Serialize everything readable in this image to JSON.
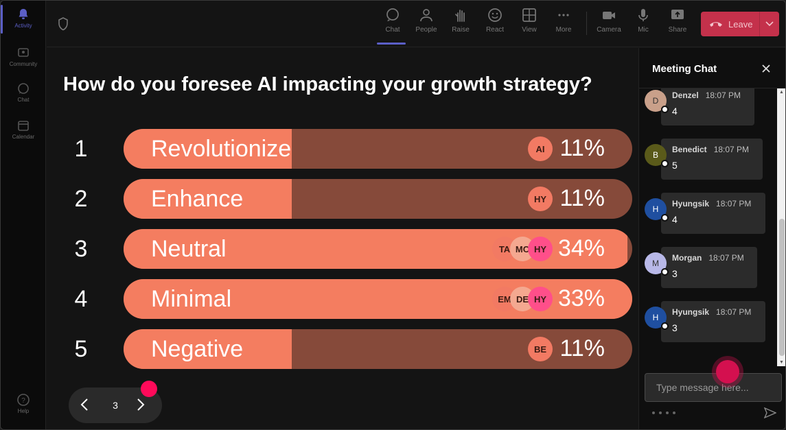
{
  "rail": {
    "items": [
      {
        "label": "Activity",
        "icon": "bell-icon"
      },
      {
        "label": "Community",
        "icon": "community-icon"
      },
      {
        "label": "Chat",
        "icon": "chat-icon"
      },
      {
        "label": "Calendar",
        "icon": "calendar-icon"
      },
      {
        "label": "Help",
        "icon": "help-icon"
      }
    ]
  },
  "toolbar": {
    "items": [
      {
        "label": "Chat",
        "icon": "chat-icon"
      },
      {
        "label": "People",
        "icon": "people-icon"
      },
      {
        "label": "Raise",
        "icon": "raise-hand-icon"
      },
      {
        "label": "React",
        "icon": "react-icon"
      },
      {
        "label": "View",
        "icon": "view-icon"
      },
      {
        "label": "More",
        "icon": "more-icon"
      },
      {
        "label": "Camera",
        "icon": "camera-icon"
      },
      {
        "label": "Mic",
        "icon": "mic-icon"
      },
      {
        "label": "Share",
        "icon": "share-icon"
      }
    ],
    "leave_label": "Leave"
  },
  "poll": {
    "question": "How do you foresee AI impacting your growth strategy?",
    "options": [
      {
        "num": "1",
        "label": "Revolutionize",
        "percent": "11%",
        "fill": 0.33,
        "avatars": [
          "AI"
        ]
      },
      {
        "num": "2",
        "label": "Enhance",
        "percent": "11%",
        "fill": 0.33,
        "avatars": [
          "HY"
        ]
      },
      {
        "num": "3",
        "label": "Neutral",
        "percent": "34%",
        "fill": 0.99,
        "avatars": [
          "TA",
          "MC",
          "HY"
        ]
      },
      {
        "num": "4",
        "label": "Minimal",
        "percent": "33%",
        "fill": 1.0,
        "avatars": [
          "EM",
          "DE",
          "HY"
        ]
      },
      {
        "num": "5",
        "label": "Negative",
        "percent": "11%",
        "fill": 0.33,
        "avatars": [
          "BE"
        ]
      }
    ],
    "pager": {
      "page": "3"
    }
  },
  "chat": {
    "title": "Meeting Chat",
    "messages": [
      {
        "initial": "D",
        "name": "Denzel",
        "time": "18:07 PM",
        "text": "4",
        "avatar_color": "#c9a08a"
      },
      {
        "initial": "B",
        "name": "Benedict",
        "time": "18:07 PM",
        "text": "5",
        "avatar_color": "#5a5a1a"
      },
      {
        "initial": "H",
        "name": "Hyungsik",
        "time": "18:07 PM",
        "text": "4",
        "avatar_color": "#1f4fa0"
      },
      {
        "initial": "M",
        "name": "Morgan",
        "time": "18:07 PM",
        "text": "3",
        "avatar_color": "#b8b8e8"
      },
      {
        "initial": "H",
        "name": "Hyungsik",
        "time": "18:07 PM",
        "text": "3",
        "avatar_color": "#1f4fa0"
      }
    ],
    "input_placeholder": "Type message here..."
  },
  "colors": {
    "bar_fill": "#f47d60",
    "bar_track": "#864a3a",
    "leave": "#c4314b",
    "accent": "#5b5fc7",
    "pink_dot": "#ff0a5a"
  }
}
